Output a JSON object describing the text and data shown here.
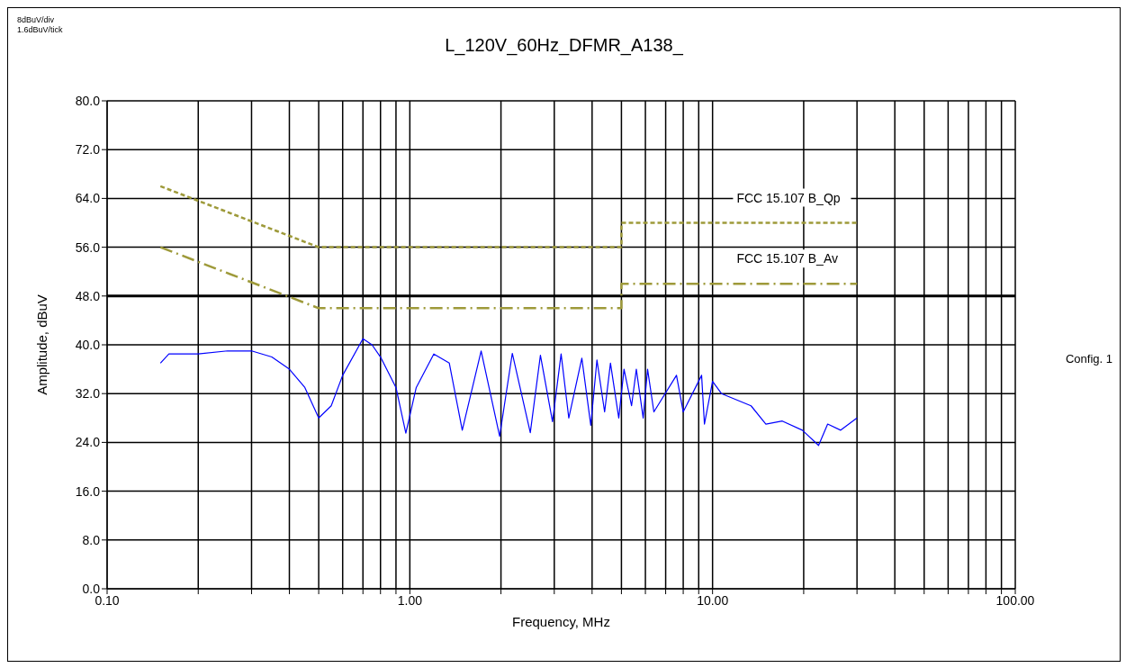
{
  "chart_data": {
    "type": "line",
    "title": "L_120V_60Hz_DFMR_A138_",
    "xlabel": "Frequency, MHz",
    "ylabel": "Amplitude, dBuV",
    "annotations": [
      "8dBuV/div",
      "1.6dBuV/tick",
      "Config. 1"
    ],
    "log": "x",
    "grid": true,
    "marker": "none",
    "xlim": [
      0.1,
      100
    ],
    "ylim": [
      0,
      80
    ],
    "xticks": [
      {
        "value": 0.1,
        "label": "0.10"
      },
      {
        "value": 0.2,
        "label": null
      },
      {
        "value": 0.3,
        "label": null
      },
      {
        "value": 0.4,
        "label": null
      },
      {
        "value": 0.5,
        "label": null
      },
      {
        "value": 0.6,
        "label": null
      },
      {
        "value": 0.7,
        "label": null
      },
      {
        "value": 0.8,
        "label": null
      },
      {
        "value": 0.9,
        "label": null
      },
      {
        "value": 1,
        "label": "1.00"
      },
      {
        "value": 2,
        "label": null
      },
      {
        "value": 3,
        "label": null
      },
      {
        "value": 4,
        "label": null
      },
      {
        "value": 5,
        "label": null
      },
      {
        "value": 6,
        "label": null
      },
      {
        "value": 7,
        "label": null
      },
      {
        "value": 8,
        "label": null
      },
      {
        "value": 9,
        "label": null
      },
      {
        "value": 10,
        "label": "10.00"
      },
      {
        "value": 20,
        "label": null
      },
      {
        "value": 30,
        "label": null
      },
      {
        "value": 40,
        "label": null
      },
      {
        "value": 50,
        "label": null
      },
      {
        "value": 60,
        "label": null
      },
      {
        "value": 70,
        "label": null
      },
      {
        "value": 80,
        "label": null
      },
      {
        "value": 90,
        "label": null
      },
      {
        "value": 100,
        "label": "100.00"
      }
    ],
    "yticks": [
      {
        "value": 0,
        "label": "0.0"
      },
      {
        "value": 8,
        "label": "8.0"
      },
      {
        "value": 16,
        "label": "16.0"
      },
      {
        "value": 24,
        "label": "24.0"
      },
      {
        "value": 32,
        "label": "32.0"
      },
      {
        "value": 40,
        "label": "40.0"
      },
      {
        "value": 48,
        "label": "48.0"
      },
      {
        "value": 56,
        "label": "56.0"
      },
      {
        "value": 64,
        "label": "64.0"
      },
      {
        "value": 72,
        "label": "72.0"
      },
      {
        "value": 80,
        "label": "80.0"
      }
    ],
    "ref_lines": [
      {
        "axis": "y",
        "value": 48,
        "label": null,
        "color": "#000000"
      }
    ],
    "series": [
      {
        "name": "FCC 15.107 B_Qp",
        "color": "#9e9a3a",
        "line_style": "dashed",
        "x": [
          0.15,
          0.5,
          5,
          5,
          30
        ],
        "values": [
          66,
          56,
          56,
          60,
          60
        ]
      },
      {
        "name": "FCC 15.107 B_Av",
        "color": "#9e9a3a",
        "line_style": "dashdot",
        "x": [
          0.15,
          0.5,
          5,
          5,
          30
        ],
        "values": [
          56,
          46,
          46,
          50,
          50
        ]
      },
      {
        "color": "#0000ff",
        "line_style": "solid",
        "x": [
          0.15,
          0.16,
          0.2,
          0.25,
          0.3,
          0.35,
          0.4,
          0.45,
          0.5,
          0.55,
          0.6,
          0.7,
          0.75,
          0.8,
          0.9,
          0.97,
          1.05,
          1.2,
          1.35,
          1.49,
          1.72,
          1.98,
          2.18,
          2.5,
          2.7,
          2.96,
          3.16,
          3.35,
          3.7,
          3.96,
          4.15,
          4.4,
          4.6,
          4.9,
          5.1,
          5.4,
          5.6,
          5.9,
          6.1,
          6.4,
          7.6,
          8,
          9.2,
          9.4,
          10,
          10.7,
          13.4,
          15,
          17,
          19.8,
          22.4,
          24,
          26.5,
          30
        ],
        "values": [
          37,
          38.5,
          38.5,
          39,
          39,
          38,
          36,
          33,
          28,
          30,
          35,
          41,
          40,
          38,
          33,
          25.5,
          33,
          38.5,
          37,
          26,
          39,
          25,
          38.6,
          25.6,
          38.3,
          27.4,
          38.5,
          28,
          37.8,
          26.8,
          37.5,
          29,
          37,
          28,
          36,
          30,
          36,
          28,
          36,
          29,
          35,
          29,
          35,
          27,
          34,
          32,
          30,
          27,
          27.5,
          26,
          23.5,
          27,
          26,
          28
        ]
      }
    ]
  }
}
